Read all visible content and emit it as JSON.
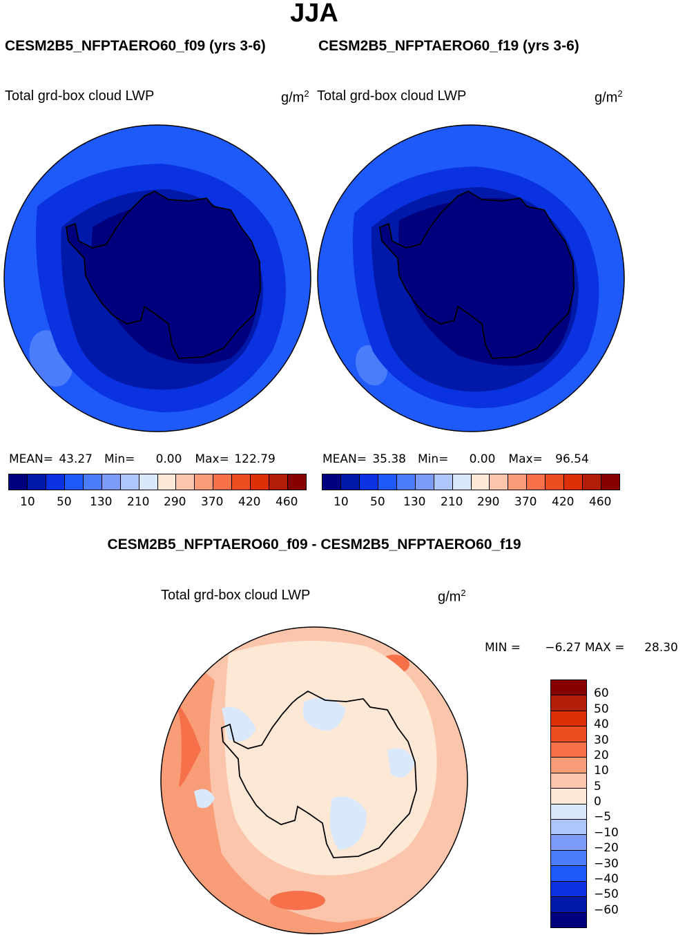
{
  "season": "JJA",
  "panels": [
    {
      "run": "CESM2B5_NFPTAERO60_f09 (yrs 3-6)",
      "variable": "Total grd-box cloud LWP",
      "units": "g/m",
      "units_exp": "2",
      "mean_label": "MEAN=",
      "mean": "43.27",
      "min_label": "Min=",
      "min": "0.00",
      "max_label": "Max=",
      "max": "122.79"
    },
    {
      "run": "CESM2B5_NFPTAERO60_f19 (yrs 3-6)",
      "variable": "Total grd-box cloud LWP",
      "units": "g/m",
      "units_exp": "2",
      "mean_label": "MEAN=",
      "mean": "35.38",
      "min_label": "Min=",
      "min": "0.00",
      "max_label": "Max=",
      "max": "96.54"
    }
  ],
  "colorbar_labels": [
    "10",
    "50",
    "130",
    "210",
    "290",
    "370",
    "420",
    "460"
  ],
  "colorbar_colors": [
    "#00007f",
    "#0019a8",
    "#0a32e0",
    "#1e5afa",
    "#4b7dfa",
    "#7d9cf7",
    "#aec7fb",
    "#d9e8fb",
    "#fde8d5",
    "#fbc5ab",
    "#f99d78",
    "#f6704a",
    "#ee4d22",
    "#dd3008",
    "#b21f08",
    "#860000"
  ],
  "difference": {
    "title": "CESM2B5_NFPTAERO60_f09 - CESM2B5_NFPTAERO60_f19",
    "variable": "Total grd-box cloud LWP",
    "units": "g/m",
    "units_exp": "2",
    "min_label": "MIN =",
    "min": "−6.27",
    "max_label": "MAX =",
    "max": "28.30",
    "colorbar_labels": [
      "60",
      "50",
      "40",
      "30",
      "20",
      "10",
      "5",
      "0",
      "−5",
      "−10",
      "−20",
      "−30",
      "−40",
      "−50",
      "−60"
    ],
    "colorbar_colors": [
      "#860000",
      "#b21f08",
      "#dd3008",
      "#ee4d22",
      "#f6704a",
      "#f99d78",
      "#fbc5ab",
      "#fde8d5",
      "#d9e8fb",
      "#aec7fb",
      "#7d9cf7",
      "#4b7dfa",
      "#1e5afa",
      "#0a32e0",
      "#0019a8",
      "#00007f"
    ]
  },
  "fills": {
    "outer": "#1e5afa",
    "mid": "#0a32e0",
    "inner": "#0019a8",
    "core": "#00007f",
    "patch": "#4b7dfa",
    "diff_base": "#fbc5ab",
    "diff_warm": "#f99d78",
    "diff_hot": "#f6704a",
    "diff_light": "#fde8d5",
    "diff_cool": "#d9e8fb",
    "coast": "#000000"
  }
}
